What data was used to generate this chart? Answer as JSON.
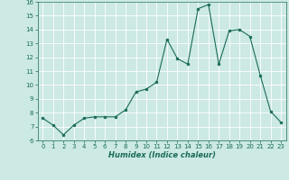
{
  "x": [
    0,
    1,
    2,
    3,
    4,
    5,
    6,
    7,
    8,
    9,
    10,
    11,
    12,
    13,
    14,
    15,
    16,
    17,
    18,
    19,
    20,
    21,
    22,
    23
  ],
  "y": [
    7.6,
    7.1,
    6.4,
    7.1,
    7.6,
    7.7,
    7.7,
    7.7,
    8.2,
    9.5,
    9.7,
    10.2,
    13.3,
    11.9,
    11.5,
    15.5,
    15.8,
    11.5,
    13.9,
    14.0,
    13.5,
    10.7,
    8.1,
    7.3
  ],
  "xlabel": "Humidex (Indice chaleur)",
  "ylim": [
    6,
    16
  ],
  "xlim": [
    -0.5,
    23.5
  ],
  "yticks": [
    6,
    7,
    8,
    9,
    10,
    11,
    12,
    13,
    14,
    15,
    16
  ],
  "xticks": [
    0,
    1,
    2,
    3,
    4,
    5,
    6,
    7,
    8,
    9,
    10,
    11,
    12,
    13,
    14,
    15,
    16,
    17,
    18,
    19,
    20,
    21,
    22,
    23
  ],
  "line_color": "#1a6b5a",
  "marker": "o",
  "marker_size": 2.0,
  "bg_color": "#cce9e4",
  "grid_color": "#ffffff",
  "tick_color": "#1a6b5a",
  "xlabel_fontsize": 6.0,
  "tick_fontsize": 5.0
}
